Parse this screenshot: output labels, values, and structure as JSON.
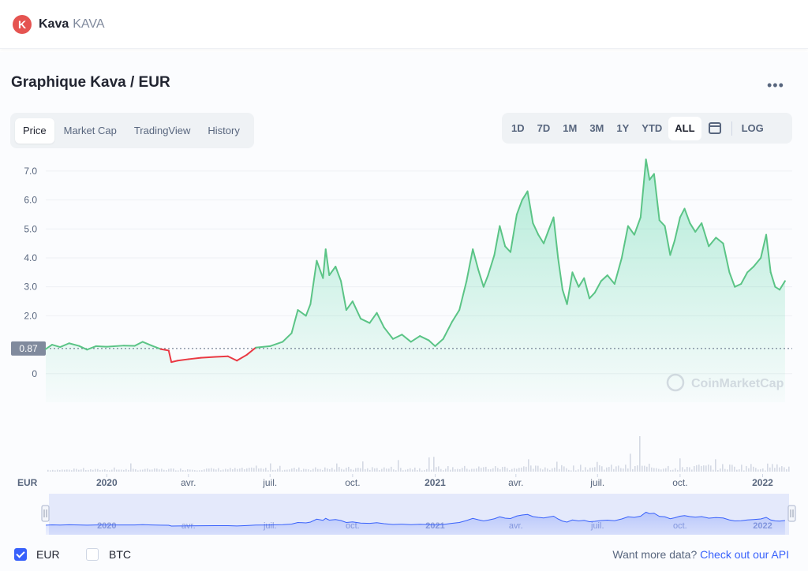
{
  "header": {
    "logo_letter": "K",
    "coin_name": "Kava",
    "coin_symbol": "KAVA"
  },
  "chart_header": {
    "title": "Graphique Kava / EUR",
    "more_label": "•••"
  },
  "tabs": [
    {
      "label": "Price",
      "active": true
    },
    {
      "label": "Market Cap",
      "active": false
    },
    {
      "label": "TradingView",
      "active": false
    },
    {
      "label": "History",
      "active": false
    }
  ],
  "ranges": {
    "items": [
      "1D",
      "7D",
      "1M",
      "3M",
      "1Y",
      "YTD",
      "ALL"
    ],
    "active": "ALL",
    "log_label": "LOG"
  },
  "watermark": "CoinMarketCap",
  "currency_label": "EUR",
  "footer": {
    "eur_label": "EUR",
    "eur_checked": true,
    "btc_label": "BTC",
    "btc_checked": false,
    "api_prefix": "Want more data?",
    "api_link": "Check out our API"
  },
  "colors": {
    "up": "#16c784",
    "up_line": "#5bc486",
    "down": "#ea3943",
    "volume": "#d4d9e4",
    "navigator": "#3861fb",
    "accent": "#3861fb"
  },
  "chart_data": {
    "type": "area",
    "title": "Graphique Kava / EUR",
    "ylabel": "",
    "xlabel": "EUR",
    "baseline": 0.87,
    "baseline_label": "0.87",
    "ylim": [
      -1.0,
      7.5
    ],
    "y_ticks": [
      0,
      2.0,
      3.0,
      4.0,
      5.0,
      6.0,
      7.0
    ],
    "y_tick_labels": [
      "0",
      "2.0",
      "3.0",
      "4.0",
      "5.0",
      "6.0",
      "7.0"
    ],
    "x_ticks": [
      {
        "label": "2020",
        "date": "2020-01-01",
        "bold": true
      },
      {
        "label": "avr.",
        "date": "2020-04-01",
        "bold": false
      },
      {
        "label": "juil.",
        "date": "2020-07-01",
        "bold": false
      },
      {
        "label": "oct.",
        "date": "2020-10-01",
        "bold": false
      },
      {
        "label": "2021",
        "date": "2021-01-01",
        "bold": true
      },
      {
        "label": "avr.",
        "date": "2021-04-01",
        "bold": false
      },
      {
        "label": "juil.",
        "date": "2021-07-01",
        "bold": false
      },
      {
        "label": "oct.",
        "date": "2021-10-01",
        "bold": false
      },
      {
        "label": "2022",
        "date": "2022-01-01",
        "bold": true
      }
    ],
    "series": [
      {
        "name": "",
        "points": [
          [
            "2019-10-25",
            0.85
          ],
          [
            "2019-11-01",
            1.0
          ],
          [
            "2019-11-10",
            0.92
          ],
          [
            "2019-11-20",
            1.05
          ],
          [
            "2019-12-01",
            0.96
          ],
          [
            "2019-12-10",
            0.83
          ],
          [
            "2019-12-20",
            0.95
          ],
          [
            "2020-01-01",
            0.93
          ],
          [
            "2020-01-20",
            0.97
          ],
          [
            "2020-02-01",
            0.96
          ],
          [
            "2020-02-10",
            1.1
          ],
          [
            "2020-02-20",
            0.97
          ],
          [
            "2020-03-01",
            0.85
          ],
          [
            "2020-03-10",
            0.8
          ],
          [
            "2020-03-13",
            0.4
          ],
          [
            "2020-03-20",
            0.45
          ],
          [
            "2020-04-01",
            0.5
          ],
          [
            "2020-04-15",
            0.55
          ],
          [
            "2020-05-01",
            0.58
          ],
          [
            "2020-05-15",
            0.6
          ],
          [
            "2020-05-25",
            0.45
          ],
          [
            "2020-06-05",
            0.65
          ],
          [
            "2020-06-15",
            0.9
          ],
          [
            "2020-07-01",
            0.95
          ],
          [
            "2020-07-15",
            1.1
          ],
          [
            "2020-07-25",
            1.4
          ],
          [
            "2020-08-01",
            2.2
          ],
          [
            "2020-08-10",
            2.0
          ],
          [
            "2020-08-15",
            2.4
          ],
          [
            "2020-08-22",
            3.9
          ],
          [
            "2020-08-29",
            3.3
          ],
          [
            "2020-09-01",
            4.3
          ],
          [
            "2020-09-05",
            3.4
          ],
          [
            "2020-09-12",
            3.7
          ],
          [
            "2020-09-18",
            3.2
          ],
          [
            "2020-09-24",
            2.2
          ],
          [
            "2020-10-01",
            2.5
          ],
          [
            "2020-10-10",
            1.9
          ],
          [
            "2020-10-20",
            1.75
          ],
          [
            "2020-10-28",
            2.1
          ],
          [
            "2020-11-05",
            1.6
          ],
          [
            "2020-11-15",
            1.2
          ],
          [
            "2020-11-25",
            1.35
          ],
          [
            "2020-12-05",
            1.1
          ],
          [
            "2020-12-15",
            1.3
          ],
          [
            "2020-12-25",
            1.15
          ],
          [
            "2021-01-01",
            0.95
          ],
          [
            "2021-01-10",
            1.2
          ],
          [
            "2021-01-20",
            1.8
          ],
          [
            "2021-01-28",
            2.2
          ],
          [
            "2021-02-05",
            3.2
          ],
          [
            "2021-02-12",
            4.3
          ],
          [
            "2021-02-18",
            3.6
          ],
          [
            "2021-02-24",
            3.0
          ],
          [
            "2021-03-01",
            3.4
          ],
          [
            "2021-03-08",
            4.1
          ],
          [
            "2021-03-14",
            5.1
          ],
          [
            "2021-03-20",
            4.4
          ],
          [
            "2021-03-26",
            4.2
          ],
          [
            "2021-04-02",
            5.5
          ],
          [
            "2021-04-08",
            6.0
          ],
          [
            "2021-04-14",
            6.3
          ],
          [
            "2021-04-20",
            5.2
          ],
          [
            "2021-04-26",
            4.8
          ],
          [
            "2021-05-02",
            4.5
          ],
          [
            "2021-05-08",
            5.0
          ],
          [
            "2021-05-13",
            5.4
          ],
          [
            "2021-05-18",
            4.0
          ],
          [
            "2021-05-23",
            2.9
          ],
          [
            "2021-05-28",
            2.4
          ],
          [
            "2021-06-03",
            3.5
          ],
          [
            "2021-06-10",
            3.0
          ],
          [
            "2021-06-16",
            3.3
          ],
          [
            "2021-06-22",
            2.6
          ],
          [
            "2021-06-28",
            2.8
          ],
          [
            "2021-07-05",
            3.2
          ],
          [
            "2021-07-12",
            3.4
          ],
          [
            "2021-07-20",
            3.1
          ],
          [
            "2021-07-28",
            4.0
          ],
          [
            "2021-08-04",
            5.1
          ],
          [
            "2021-08-11",
            4.8
          ],
          [
            "2021-08-18",
            5.4
          ],
          [
            "2021-08-24",
            7.4
          ],
          [
            "2021-08-28",
            6.7
          ],
          [
            "2021-09-02",
            6.9
          ],
          [
            "2021-09-08",
            5.3
          ],
          [
            "2021-09-14",
            5.1
          ],
          [
            "2021-09-20",
            4.1
          ],
          [
            "2021-09-25",
            4.6
          ],
          [
            "2021-10-01",
            5.4
          ],
          [
            "2021-10-06",
            5.7
          ],
          [
            "2021-10-12",
            5.2
          ],
          [
            "2021-10-18",
            4.9
          ],
          [
            "2021-10-25",
            5.2
          ],
          [
            "2021-11-02",
            4.4
          ],
          [
            "2021-11-10",
            4.7
          ],
          [
            "2021-11-18",
            4.5
          ],
          [
            "2021-11-25",
            3.5
          ],
          [
            "2021-12-01",
            3.0
          ],
          [
            "2021-12-08",
            3.1
          ],
          [
            "2021-12-15",
            3.5
          ],
          [
            "2021-12-22",
            3.7
          ],
          [
            "2021-12-30",
            4.0
          ],
          [
            "2022-01-05",
            4.8
          ],
          [
            "2022-01-10",
            3.5
          ],
          [
            "2022-01-15",
            3.0
          ],
          [
            "2022-01-20",
            2.9
          ],
          [
            "2022-01-26",
            3.2
          ]
        ]
      }
    ]
  }
}
